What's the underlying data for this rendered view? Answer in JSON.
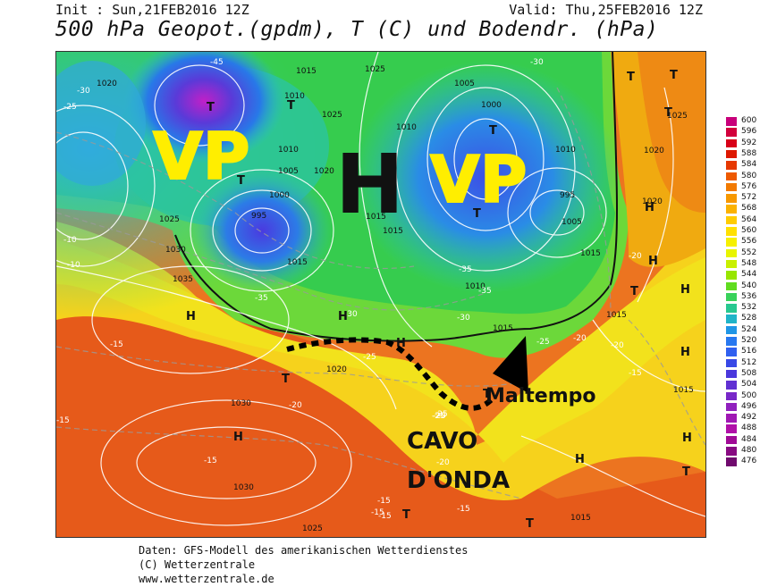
{
  "header": {
    "init": "Init : Sun,21FEB2016 12Z",
    "valid": "Valid: Thu,25FEB2016 12Z",
    "title": "500 hPa Geopot.(gpdm), T (C) und Bodendr. (hPa)"
  },
  "overlay": {
    "vp_left": "VP",
    "h_center": "H",
    "vp_right": "VP",
    "maltempo": "Maltempo",
    "cavo_line1": "CAVO",
    "cavo_line2": "D'ONDA"
  },
  "pressure_labels": [
    "1015",
    "1025",
    "1005",
    "1020",
    "1010",
    "1025",
    "1010",
    "1000",
    "1010",
    "1025",
    "1005",
    "1020",
    "1010",
    "1000",
    "1005",
    "1015",
    "1015",
    "1015",
    "1015",
    "1030",
    "1035",
    "1025",
    "1015",
    "1015",
    "1020",
    "1030",
    "1030",
    "1025",
    "1015",
    "1015",
    "1020",
    "1020",
    "1010",
    "995",
    "995"
  ],
  "temp_labels": [
    "-45",
    "-30",
    "-25",
    "-30",
    "-35",
    "-35",
    "-15",
    "-15",
    "-10",
    "-20",
    "-25",
    "-25",
    "-15",
    "-15",
    "-20",
    "-10",
    "-15",
    "-20",
    "-30",
    "-35",
    "-30",
    "-20",
    "-25",
    "-15",
    "-15",
    "-20",
    "-15",
    "-20",
    "-25"
  ],
  "highs_lows": [
    "T",
    "T",
    "T",
    "T",
    "T",
    "T",
    "T",
    "T",
    "H",
    "H",
    "H",
    "H",
    "H",
    "H",
    "H",
    "H",
    "H",
    "H",
    "T",
    "T",
    "T",
    "T",
    "T",
    "T"
  ],
  "legend": {
    "values": [
      "600",
      "596",
      "592",
      "588",
      "584",
      "580",
      "576",
      "572",
      "568",
      "564",
      "560",
      "556",
      "552",
      "548",
      "544",
      "540",
      "536",
      "532",
      "528",
      "524",
      "520",
      "516",
      "512",
      "508",
      "504",
      "500",
      "496",
      "492",
      "488",
      "484",
      "480",
      "476"
    ],
    "colors": [
      "#c8007a",
      "#d2003c",
      "#d80018",
      "#de1800",
      "#e63800",
      "#ee5a00",
      "#f27a00",
      "#f79800",
      "#fbb200",
      "#ffcc00",
      "#ffe000",
      "#f6f000",
      "#e8f500",
      "#c8f000",
      "#98e600",
      "#60dc20",
      "#38d25a",
      "#28c890",
      "#20b4c8",
      "#2096e6",
      "#2878f0",
      "#3060f0",
      "#3848e6",
      "#4a38dc",
      "#6030d2",
      "#7828c8",
      "#9020be",
      "#a018b4",
      "#b010a8",
      "#a00a96",
      "#880a82",
      "#700a6e"
    ]
  },
  "footer": {
    "line1": "Daten: GFS-Modell des amerikanischen Wetterdienstes",
    "line2": "(C) Wetterzentrale",
    "line3": "www.wetterzentrale.de"
  }
}
